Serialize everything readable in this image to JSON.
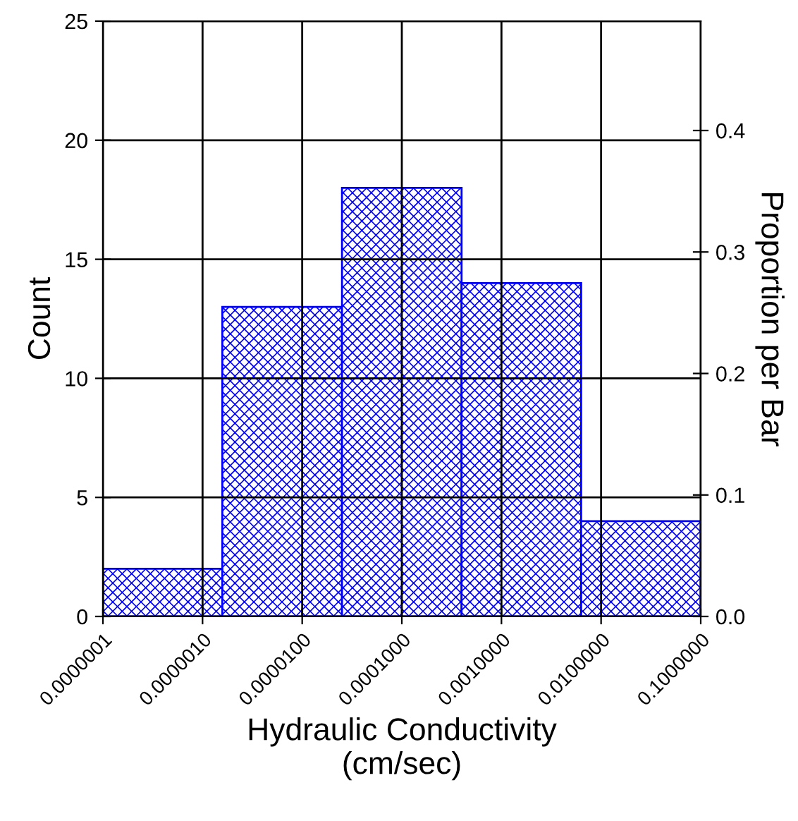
{
  "chart_data": {
    "type": "histogram",
    "xlabel": "Hydraulic Conductivity\n(cm/sec)",
    "ylabel": "Count",
    "y2label": "Proportion per Bar",
    "bins": [
      1e-07,
      1.58e-06,
      2.51e-05,
      0.000398,
      0.00631,
      0.1
    ],
    "values": [
      2,
      13,
      18,
      14,
      4
    ],
    "color": "#0000ff",
    "log": "x",
    "xlim": [
      1e-07,
      0.1
    ],
    "xticks": [
      {
        "value": 1e-07,
        "label": "0.0000001"
      },
      {
        "value": 1e-06,
        "label": "0.0000010"
      },
      {
        "value": 1e-05,
        "label": "0.0000100"
      },
      {
        "value": 0.0001,
        "label": "0.0001000"
      },
      {
        "value": 0.001,
        "label": "0.0010000"
      },
      {
        "value": 0.01,
        "label": "0.0100000"
      },
      {
        "value": 0.1,
        "label": "0.1000000"
      }
    ],
    "ylim": [
      0,
      25
    ],
    "yticks": [
      0,
      5,
      10,
      15,
      20,
      25
    ],
    "y2lim": [
      0,
      0.49
    ],
    "y2ticks": [
      {
        "value": 0,
        "label": "0.0"
      },
      {
        "value": 0.1,
        "label": "0.1"
      },
      {
        "value": 0.2,
        "label": "0.2"
      },
      {
        "value": 0.3,
        "label": "0.3"
      },
      {
        "value": 0.4,
        "label": "0.4"
      }
    ],
    "grid": true
  }
}
